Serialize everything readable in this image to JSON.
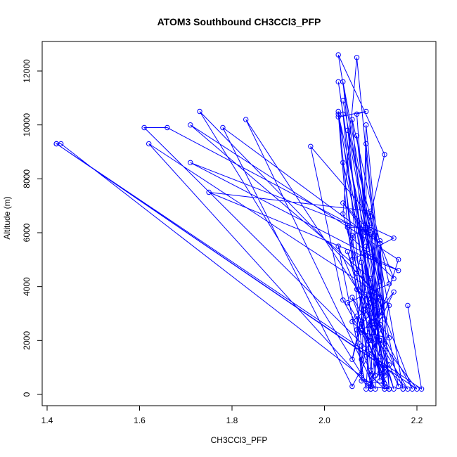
{
  "chart_data": {
    "type": "line",
    "title": "ATOM3 Southbound CH3CCl3_PFP",
    "xlabel": "CH3CCl3_PFP",
    "ylabel": "Altitude (m)",
    "xlim": [
      1.4,
      2.2
    ],
    "ylim": [
      0,
      12000
    ],
    "x_ticks": [
      1.4,
      1.6,
      1.8,
      2.0,
      2.2
    ],
    "x_tick_labels": [
      "1.4",
      "1.6",
      "1.8",
      "2.0",
      "2.2"
    ],
    "y_ticks": [
      0,
      2000,
      4000,
      6000,
      8000,
      10000,
      12000
    ],
    "y_tick_labels": [
      "0",
      "2000",
      "4000",
      "6000",
      "8000",
      "10000",
      "12000"
    ],
    "grid": false,
    "legend": "none",
    "series": [
      {
        "color": "#0000ff",
        "marker": "open-circle",
        "x": [
          2.18,
          2.21,
          1.42,
          1.43,
          2.1,
          2.13,
          1.42,
          2.2,
          2.12,
          2.03,
          2.09,
          2.07,
          2.1,
          2.03,
          2.11,
          2.12,
          2.03,
          2.08,
          2.1,
          2.13,
          2.09,
          2.06,
          2.1,
          2.12,
          2.06,
          2.18,
          1.61,
          1.66,
          2.09,
          2.11,
          2.1,
          2.14,
          2.07,
          2.04,
          2.1,
          2.05,
          2.13,
          2.1,
          1.71,
          2.16,
          2.12,
          2.07,
          2.13,
          2.08,
          2.07,
          2.14,
          2.13,
          2.04,
          2.06,
          2.15,
          2.12,
          1.78,
          2.06,
          2.11,
          2.11,
          2.04,
          2.1,
          1.73,
          2.14,
          2.1,
          1.62,
          2.11,
          2.19,
          2.12,
          2.1,
          1.71,
          2.16,
          1.75,
          2.1,
          2.12,
          2.05,
          2.14,
          2.06,
          2.11,
          2.1,
          2.08,
          2.04,
          2.12,
          2.09,
          2.09,
          2.04,
          2.09,
          2.05,
          2.15,
          2.1,
          2.15,
          2.08,
          2.07,
          2.12,
          2.09,
          2.08,
          2.1,
          2.07,
          2.1,
          1.97,
          2.04,
          2.13,
          2.12,
          2.14,
          2.13,
          2.08,
          2.09,
          2.13,
          2.03,
          2.05,
          2.06,
          2.15,
          2.1,
          2.06,
          2.1,
          2.12,
          2.12,
          2.11,
          2.11,
          1.83,
          2.14,
          2.08,
          2.11,
          2.17,
          2.17,
          2.11,
          2.1,
          2.06,
          2.12,
          2.07,
          2.13,
          2.03,
          2.1,
          2.05,
          2.11,
          2.09,
          2.03,
          2.14,
          2.13,
          2.11,
          2.07,
          2.16,
          2.04
        ],
        "y": [
          3300,
          200,
          9300,
          9300,
          400,
          1000,
          9300,
          200,
          2000,
          10300,
          10500,
          10400,
          3400,
          11600,
          2500,
          500,
          10500,
          1800,
          700,
          200,
          3700,
          1300,
          3800,
          800,
          3600,
          200,
          9900,
          9900,
          6000,
          5000,
          300,
          200,
          12500,
          6700,
          2700,
          5300,
          200,
          4300,
          10000,
          5000,
          2900,
          9600,
          400,
          500,
          2900,
          200,
          1900,
          8600,
          5800,
          4300,
          5600,
          9900,
          300,
          1900,
          2700,
          10400,
          200,
          10500,
          3300,
          200,
          9300,
          3800,
          200,
          2400,
          6000,
          8600,
          4600,
          7500,
          6800,
          1400,
          3400,
          4100,
          10200,
          700,
          900,
          4900,
          11600,
          4200,
          9300,
          6000,
          7100,
          6200,
          6200,
          200,
          2700,
          3800,
          1300,
          2400,
          2600,
          5500,
          700,
          3000,
          2400,
          6600,
          9200,
          3500,
          800,
          5700,
          200,
          300,
          2600,
          10000,
          2800,
          10400,
          6200,
          5000,
          5800,
          6200,
          5900,
          200,
          3100,
          5600,
          2600,
          200,
          10200,
          2100,
          2300,
          2900,
          200,
          200,
          6000,
          2000,
          2700,
          3600,
          4500,
          8900,
          12600,
          5100,
          9800,
          5900,
          200,
          5500,
          1100,
          700,
          3300,
          3900,
          300,
          10900
        ]
      }
    ]
  }
}
